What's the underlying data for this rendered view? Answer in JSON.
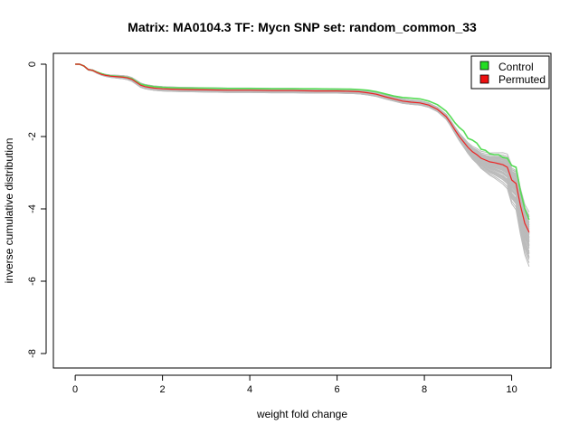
{
  "chart_data": {
    "type": "line",
    "title": "Matrix: MA0104.3 TF: Mycn SNP set: random_common_33",
    "xlabel": "weight fold change",
    "ylabel": "inverse cumulative distribution",
    "xlim": [
      -0.5,
      10.9
    ],
    "ylim": [
      -8.4,
      0.3
    ],
    "x_ticks": [
      0,
      2,
      4,
      6,
      8,
      10
    ],
    "y_ticks": [
      0,
      -2,
      -4,
      -6,
      -8
    ],
    "legend_position": "top-right",
    "grid": false,
    "legend": [
      {
        "name": "Control",
        "color": "#22dd22"
      },
      {
        "name": "Permuted",
        "color": "#ee1111"
      }
    ],
    "series": [
      {
        "name": "Control",
        "color": "#55dd55",
        "x": [
          0,
          0.1,
          0.2,
          0.3,
          0.4,
          0.5,
          0.6,
          0.7,
          0.8,
          0.9,
          1.0,
          1.1,
          1.2,
          1.3,
          1.4,
          1.5,
          1.6,
          1.7,
          1.8,
          1.9,
          2.0,
          2.2,
          2.5,
          3.0,
          3.5,
          4.0,
          4.5,
          5.0,
          5.5,
          6.0,
          6.3,
          6.5,
          6.7,
          6.9,
          7.1,
          7.3,
          7.5,
          7.7,
          7.9,
          8.1,
          8.3,
          8.5,
          8.6,
          8.7,
          8.8,
          8.9,
          9.0,
          9.1,
          9.2,
          9.3,
          9.4,
          9.5,
          9.6,
          9.7,
          9.8,
          9.9,
          10.0,
          10.1,
          10.2,
          10.3,
          10.4
        ],
        "y": [
          0,
          0,
          -0.05,
          -0.15,
          -0.17,
          -0.22,
          -0.26,
          -0.3,
          -0.32,
          -0.33,
          -0.34,
          -0.35,
          -0.37,
          -0.4,
          -0.48,
          -0.55,
          -0.58,
          -0.6,
          -0.62,
          -0.63,
          -0.64,
          -0.65,
          -0.66,
          -0.66,
          -0.67,
          -0.67,
          -0.68,
          -0.68,
          -0.68,
          -0.69,
          -0.69,
          -0.7,
          -0.72,
          -0.76,
          -0.82,
          -0.88,
          -0.92,
          -0.94,
          -0.96,
          -1.02,
          -1.12,
          -1.3,
          -1.45,
          -1.62,
          -1.75,
          -1.85,
          -2.05,
          -2.1,
          -2.18,
          -2.35,
          -2.38,
          -2.48,
          -2.5,
          -2.5,
          -2.58,
          -2.6,
          -2.8,
          -2.85,
          -3.5,
          -4.0,
          -4.3
        ]
      },
      {
        "name": "Permuted",
        "color": "#ee2222",
        "x": [
          0,
          0.1,
          0.2,
          0.3,
          0.4,
          0.5,
          0.6,
          0.7,
          0.8,
          0.9,
          1.0,
          1.1,
          1.2,
          1.3,
          1.4,
          1.5,
          1.6,
          1.7,
          1.8,
          1.9,
          2.0,
          2.2,
          2.5,
          3.0,
          3.5,
          4.0,
          4.5,
          5.0,
          5.5,
          6.0,
          6.3,
          6.5,
          6.7,
          6.9,
          7.1,
          7.3,
          7.5,
          7.7,
          7.9,
          8.1,
          8.3,
          8.5,
          8.6,
          8.7,
          8.8,
          8.9,
          9.0,
          9.1,
          9.2,
          9.3,
          9.4,
          9.5,
          9.6,
          9.7,
          9.8,
          9.9,
          10.0,
          10.1,
          10.2,
          10.3,
          10.4
        ],
        "y": [
          0,
          0,
          -0.05,
          -0.15,
          -0.17,
          -0.23,
          -0.28,
          -0.31,
          -0.33,
          -0.34,
          -0.35,
          -0.36,
          -0.38,
          -0.42,
          -0.5,
          -0.58,
          -0.62,
          -0.64,
          -0.66,
          -0.67,
          -0.68,
          -0.69,
          -0.7,
          -0.71,
          -0.72,
          -0.72,
          -0.73,
          -0.73,
          -0.74,
          -0.74,
          -0.75,
          -0.76,
          -0.79,
          -0.83,
          -0.9,
          -0.96,
          -1.02,
          -1.05,
          -1.07,
          -1.13,
          -1.25,
          -1.45,
          -1.62,
          -1.82,
          -2.0,
          -2.15,
          -2.3,
          -2.42,
          -2.5,
          -2.6,
          -2.65,
          -2.7,
          -2.72,
          -2.75,
          -2.78,
          -2.85,
          -3.2,
          -3.3,
          -3.9,
          -4.4,
          -4.65
        ]
      }
    ],
    "permutation_band": {
      "color": "#bbbbbb",
      "count": 60,
      "note_ends": [
        -3.6,
        -5.7
      ]
    }
  }
}
